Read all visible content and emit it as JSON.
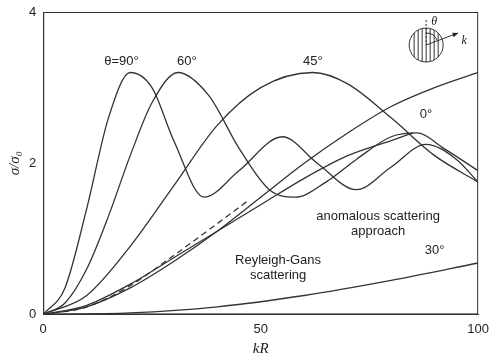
{
  "chart_data": {
    "type": "line",
    "x_label": "kR",
    "y_label": "σ/σ₀",
    "xlim": [
      0,
      100
    ],
    "xticks": [
      0,
      50,
      100
    ],
    "ylim": [
      0,
      4
    ],
    "yticks": [
      0,
      2,
      4
    ],
    "grid": false,
    "series": [
      {
        "name": "θ=90°",
        "color": "#333333",
        "line_style": "solid",
        "x": [
          0,
          5,
          10,
          15,
          20,
          25,
          30,
          37,
          45,
          55,
          63,
          72,
          80,
          88,
          95,
          100
        ],
        "values": [
          0,
          0.35,
          1.4,
          2.6,
          3.2,
          3.0,
          2.3,
          1.55,
          1.9,
          2.35,
          2.0,
          1.65,
          1.95,
          2.25,
          2.05,
          1.75
        ]
      },
      {
        "name": "60°",
        "color": "#333333",
        "line_style": "solid",
        "x": [
          0,
          5,
          10,
          15,
          20,
          25,
          31,
          38,
          45,
          52,
          58,
          65,
          72,
          80,
          86,
          92,
          100
        ],
        "values": [
          0,
          0.15,
          0.6,
          1.3,
          2.1,
          2.8,
          3.2,
          2.9,
          2.2,
          1.65,
          1.55,
          1.75,
          2.05,
          2.35,
          2.4,
          2.2,
          1.9
        ]
      },
      {
        "name": "45°",
        "color": "#333333",
        "line_style": "solid",
        "x": [
          0,
          10,
          20,
          30,
          40,
          50,
          62,
          70,
          80,
          90,
          100
        ],
        "values": [
          0,
          0.25,
          0.9,
          1.7,
          2.5,
          3.0,
          3.2,
          3.05,
          2.6,
          2.1,
          1.75
        ]
      },
      {
        "name": "0°",
        "color": "#333333",
        "line_style": "solid",
        "x": [
          0,
          10,
          20,
          30,
          40,
          50,
          60,
          70,
          80,
          90,
          100
        ],
        "values": [
          0,
          0.1,
          0.35,
          0.7,
          1.1,
          1.55,
          2.0,
          2.4,
          2.75,
          3.0,
          3.2
        ]
      },
      {
        "name": "anomalous scattering approach",
        "color": "#333333",
        "line_style": "solid",
        "x": [
          0,
          10,
          20,
          30,
          40,
          50,
          60,
          70,
          80,
          85
        ],
        "values": [
          0,
          0.12,
          0.4,
          0.75,
          1.1,
          1.45,
          1.8,
          2.1,
          2.3,
          2.4
        ]
      },
      {
        "name": "Reyleigh-Gans scattering",
        "color": "#333333",
        "line_style": "dashed",
        "x": [
          0,
          10,
          20,
          30,
          40,
          47
        ],
        "values": [
          0,
          0.1,
          0.38,
          0.78,
          1.2,
          1.5
        ]
      },
      {
        "name": "30°",
        "color": "#333333",
        "line_style": "solid",
        "x": [
          0,
          20,
          40,
          60,
          80,
          100
        ],
        "values": [
          0,
          0.02,
          0.1,
          0.25,
          0.45,
          0.68
        ]
      }
    ],
    "annotations": [
      {
        "text": "θ=90°",
        "x": 18,
        "y": 3.35
      },
      {
        "text": "60°",
        "x": 33,
        "y": 3.35
      },
      {
        "text": "45°",
        "x": 62,
        "y": 3.35
      },
      {
        "text": "0°",
        "x": 88,
        "y": 2.65
      },
      {
        "text": "anomalous scattering\napproach",
        "x": 77,
        "y": 1.2
      },
      {
        "text": "Reyleigh-Gans\nscattering",
        "x": 54,
        "y": 0.62
      },
      {
        "text": "30°",
        "x": 90,
        "y": 0.85
      }
    ],
    "inset": {
      "angle_label": "θ",
      "wave_label": "k"
    }
  }
}
